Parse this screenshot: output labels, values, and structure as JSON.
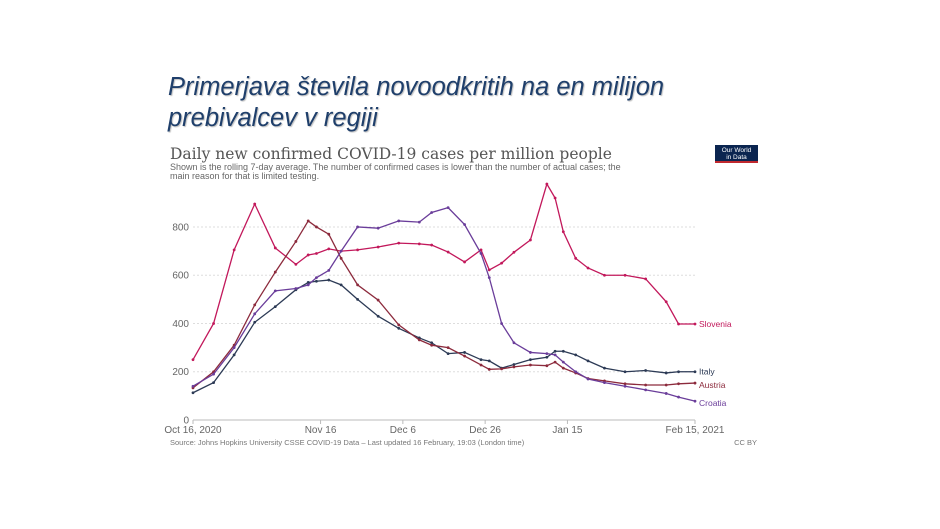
{
  "slide": {
    "title_line1": "Primerjava števila novoodkritih na en milijon",
    "title_line2": "prebivalcev v regiji"
  },
  "logo": {
    "line1": "Our World",
    "line2": "in Data",
    "bg_color": "#0b2550",
    "accent_color": "#c0282e"
  },
  "chart_data": {
    "type": "line",
    "title": "Daily new confirmed COVID-19 cases per million people",
    "subtitle_line1": "Shown is the rolling 7-day average. The number of confirmed cases is lower than the number of actual cases; the",
    "subtitle_line2": "main reason for that is limited testing.",
    "source": "Source: Johns Hopkins University CSSE COVID-19 Data – Last updated 16 February, 19:03 (London time)",
    "license": "CC BY",
    "xlim": [
      "2020-10-16",
      "2021-02-15"
    ],
    "ylim": [
      0,
      950
    ],
    "grid": true,
    "legend": "right-end labels",
    "y_ticks": [
      0,
      200,
      400,
      600,
      800
    ],
    "x_ticks": [
      {
        "date": "2020-10-16",
        "label": "Oct 16, 2020"
      },
      {
        "date": "2020-11-16",
        "label": "Nov 16"
      },
      {
        "date": "2020-12-06",
        "label": "Dec 6"
      },
      {
        "date": "2020-12-26",
        "label": "Dec 26"
      },
      {
        "date": "2021-01-15",
        "label": "Jan 15"
      },
      {
        "date": "2021-02-15",
        "label": "Feb 15, 2021"
      }
    ],
    "x": [
      "2020-10-16",
      "2020-10-21",
      "2020-10-26",
      "2020-10-31",
      "2020-11-05",
      "2020-11-10",
      "2020-11-13",
      "2020-11-15",
      "2020-11-18",
      "2020-11-21",
      "2020-11-25",
      "2020-11-30",
      "2020-12-05",
      "2020-12-10",
      "2020-12-13",
      "2020-12-17",
      "2020-12-21",
      "2020-12-25",
      "2020-12-27",
      "2020-12-30",
      "2021-01-02",
      "2021-01-06",
      "2021-01-10",
      "2021-01-12",
      "2021-01-14",
      "2021-01-17",
      "2021-01-20",
      "2021-01-24",
      "2021-01-29",
      "2021-02-03",
      "2021-02-08",
      "2021-02-11",
      "2021-02-15"
    ],
    "series": [
      {
        "name": "Slovenia",
        "color": "#c2185b",
        "values": [
          250,
          400,
          705,
          895,
          713,
          645,
          684,
          690,
          709,
          700,
          705,
          717,
          733,
          730,
          725,
          696,
          655,
          705,
          622,
          650,
          695,
          746,
          978,
          920,
          780,
          670,
          630,
          600,
          600,
          585,
          490,
          398,
          398
        ]
      },
      {
        "name": "Italy",
        "color": "#2c3a55",
        "values": [
          113,
          155,
          270,
          405,
          470,
          540,
          570,
          575,
          580,
          560,
          500,
          430,
          380,
          340,
          320,
          275,
          280,
          250,
          245,
          215,
          230,
          250,
          260,
          285,
          285,
          270,
          245,
          215,
          200,
          205,
          195,
          200,
          200
        ]
      },
      {
        "name": "Austria",
        "color": "#8c2a3c",
        "values": [
          133,
          200,
          310,
          477,
          613,
          740,
          825,
          800,
          770,
          670,
          560,
          497,
          394,
          332,
          310,
          300,
          265,
          228,
          210,
          212,
          220,
          228,
          225,
          240,
          215,
          195,
          172,
          162,
          150,
          145,
          145,
          150,
          153
        ]
      },
      {
        "name": "Croatia",
        "color": "#6a3d9a",
        "values": [
          140,
          190,
          300,
          440,
          535,
          545,
          560,
          590,
          620,
          700,
          800,
          795,
          825,
          820,
          860,
          880,
          810,
          690,
          590,
          400,
          320,
          280,
          275,
          270,
          240,
          200,
          170,
          155,
          140,
          125,
          110,
          95,
          78
        ]
      }
    ]
  }
}
